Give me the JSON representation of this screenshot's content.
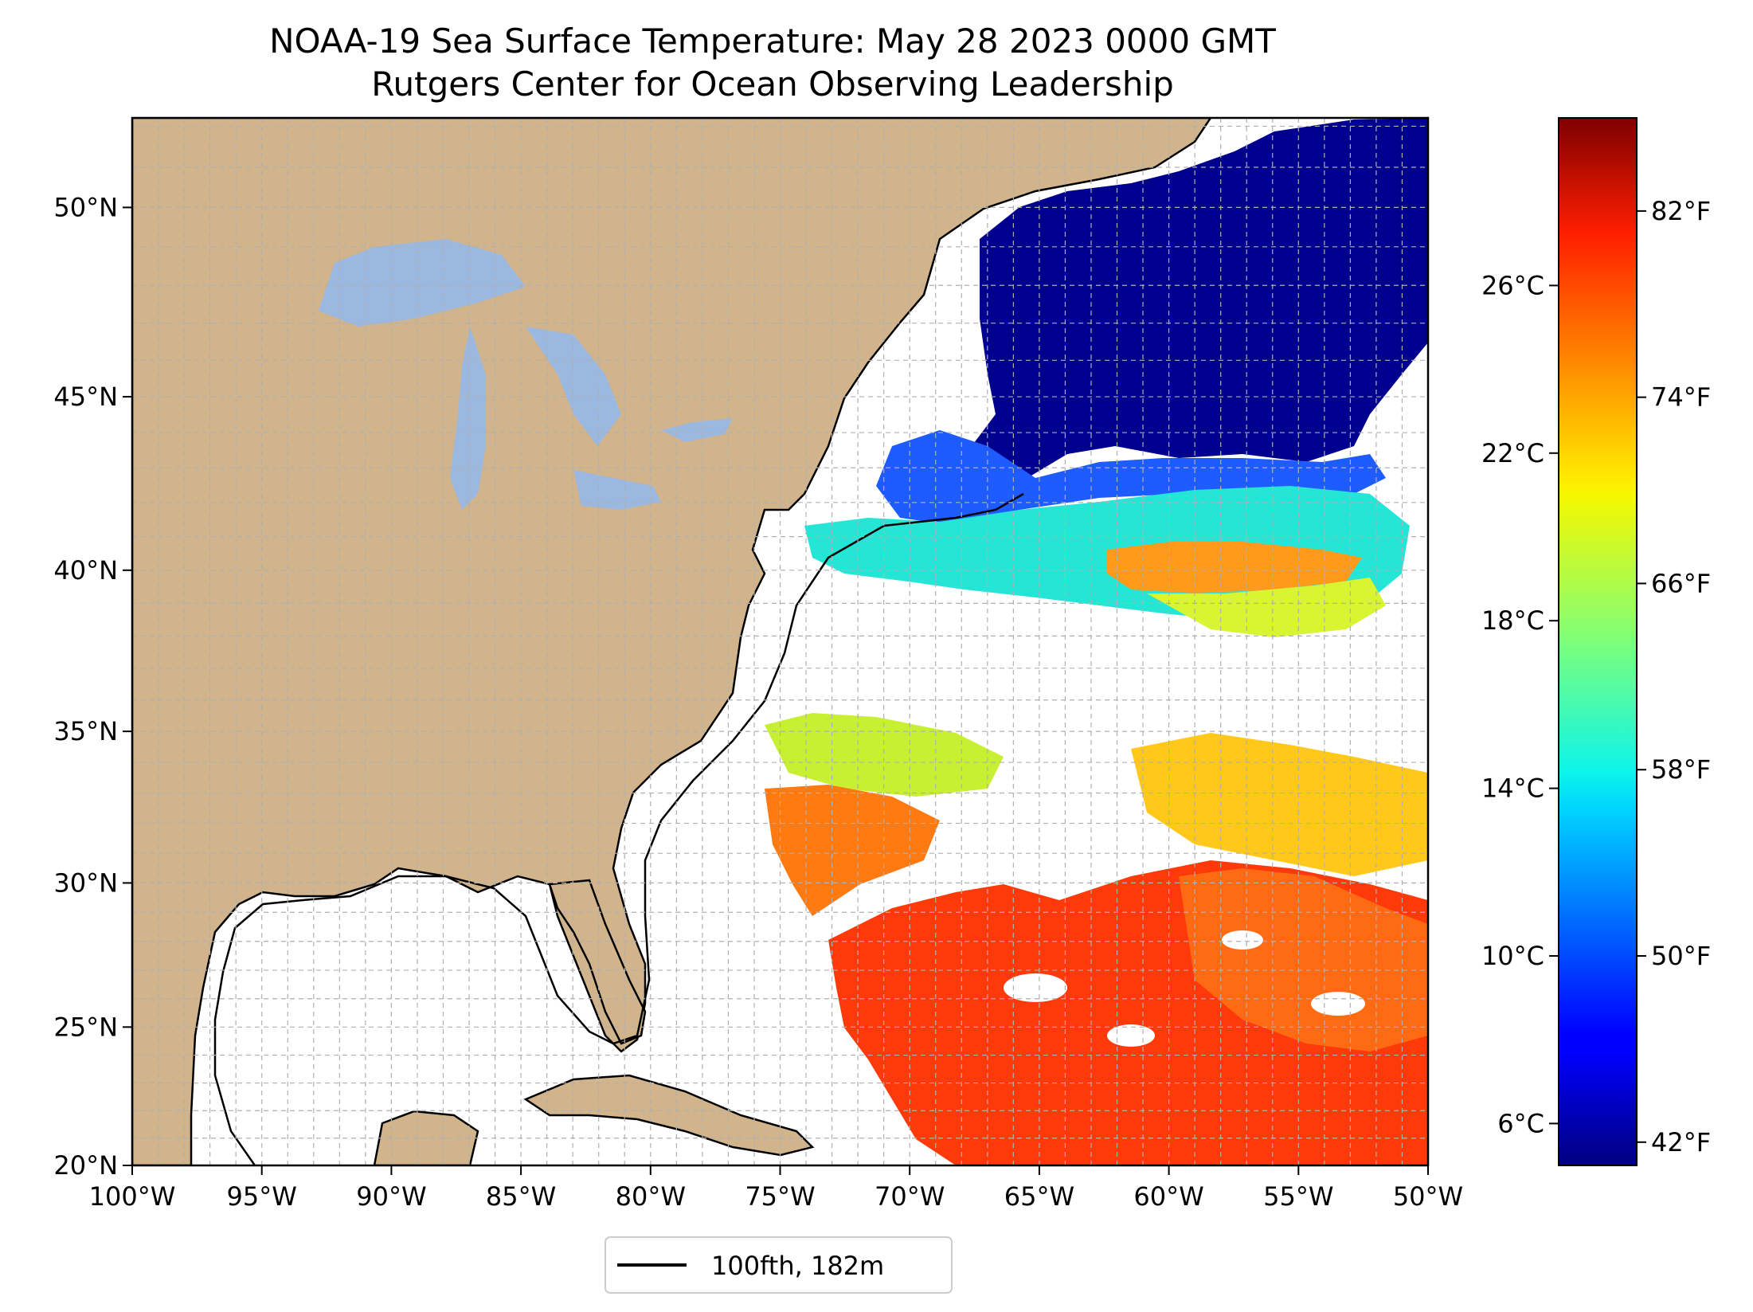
{
  "title": {
    "line1": "NOAA-19 Sea Surface Temperature: May 28 2023 0000 GMT",
    "line2": "Rutgers Center for Ocean Observing Leadership"
  },
  "map": {
    "lon_range": [
      -100,
      -50
    ],
    "lat_range": [
      20,
      52.2
    ],
    "lon_ticks": [
      {
        "value": -100,
        "label": "100°W"
      },
      {
        "value": -95,
        "label": "95°W"
      },
      {
        "value": -90,
        "label": "90°W"
      },
      {
        "value": -85,
        "label": "85°W"
      },
      {
        "value": -80,
        "label": "80°W"
      },
      {
        "value": -75,
        "label": "75°W"
      },
      {
        "value": -70,
        "label": "70°W"
      },
      {
        "value": -65,
        "label": "65°W"
      },
      {
        "value": -60,
        "label": "60°W"
      },
      {
        "value": -55,
        "label": "55°W"
      },
      {
        "value": -50,
        "label": "50°W"
      }
    ],
    "lat_ticks": [
      {
        "value": 20,
        "label": "20°N"
      },
      {
        "value": 25,
        "label": "25°N"
      },
      {
        "value": 30,
        "label": "30°N"
      },
      {
        "value": 35,
        "label": "35°N"
      },
      {
        "value": 40,
        "label": "40°N"
      },
      {
        "value": 45,
        "label": "45°N"
      },
      {
        "value": 50,
        "label": "50°N"
      }
    ],
    "gridlines": "dashed, 1 degree",
    "colors": {
      "land": "#d2b48c",
      "lakes": "#9bb8e0",
      "no_data": "#ffffff",
      "borders": "#000000",
      "grid": "#b0b0b0"
    }
  },
  "colorbar": {
    "colormap": "jet",
    "range_celsius": [
      5,
      30
    ],
    "celsius_ticks": [
      {
        "value": 6,
        "label": "6°C"
      },
      {
        "value": 10,
        "label": "10°C"
      },
      {
        "value": 14,
        "label": "14°C"
      },
      {
        "value": 18,
        "label": "18°C"
      },
      {
        "value": 22,
        "label": "22°C"
      },
      {
        "value": 26,
        "label": "26°C"
      }
    ],
    "fahrenheit_ticks": [
      {
        "value": 42,
        "label": "42°F"
      },
      {
        "value": 50,
        "label": "50°F"
      },
      {
        "value": 58,
        "label": "58°F"
      },
      {
        "value": 66,
        "label": "66°F"
      },
      {
        "value": 74,
        "label": "74°F"
      },
      {
        "value": 82,
        "label": "82°F"
      }
    ]
  },
  "legend": {
    "label": "100fth, 182m",
    "placement": "bottom-center"
  }
}
